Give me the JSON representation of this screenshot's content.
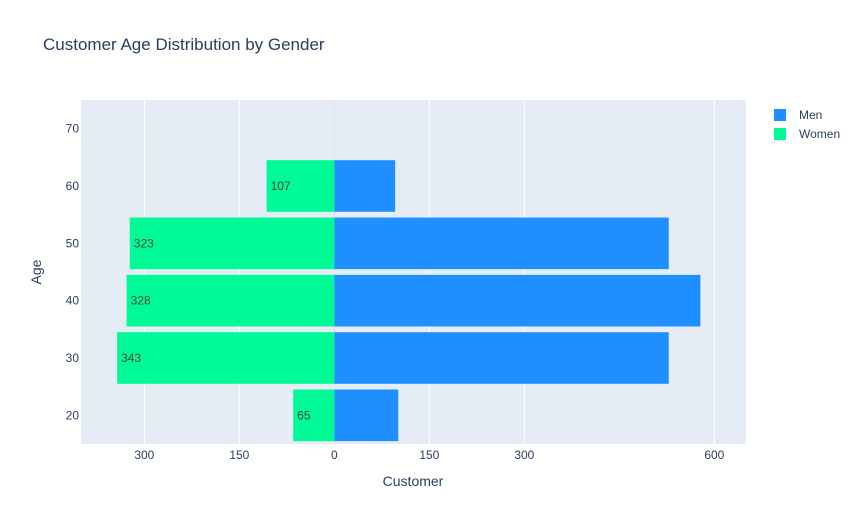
{
  "chart_data": {
    "type": "bar",
    "orientation": "horizontal",
    "title": "Customer Age Distribution by Gender",
    "xlabel": "Customer",
    "ylabel": "Age",
    "categories": [
      20,
      30,
      40,
      50,
      60
    ],
    "series": [
      {
        "name": "Men",
        "values": [
          101,
          528,
          578,
          528,
          96
        ],
        "color": "#1f8fff"
      },
      {
        "name": "Women",
        "values": [
          65,
          343,
          328,
          323,
          107
        ],
        "color": "#00fa96",
        "data_labels": [
          "65",
          "343",
          "328",
          "323",
          "107"
        ]
      }
    ],
    "xlim": [
      -400,
      650
    ],
    "xticks": [
      -300,
      -150,
      0,
      150,
      300,
      600
    ],
    "xtick_labels": [
      "300",
      "150",
      "0",
      "150",
      "300",
      "600"
    ],
    "ylim": [
      15,
      75
    ],
    "yticks": [
      20,
      30,
      40,
      50,
      60,
      70
    ],
    "ytick_labels": [
      "20",
      "30",
      "40",
      "50",
      "60",
      "70"
    ],
    "bar_width": 9,
    "legend_position": "top-right",
    "grid": true,
    "colors": {
      "plot_bg": "#e5ecf6",
      "grid": "#ffffff",
      "text": "#2a3f5f"
    }
  }
}
